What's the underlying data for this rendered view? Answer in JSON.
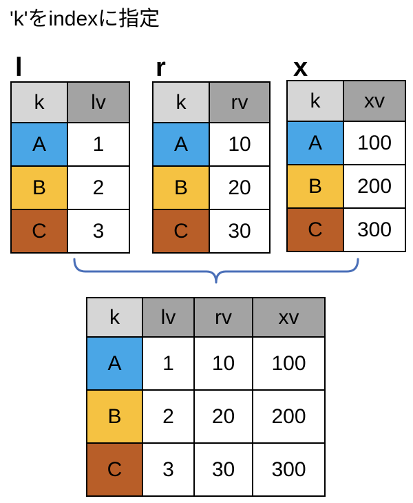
{
  "title": "'k'をindexに指定",
  "tables": {
    "l": {
      "name": "l",
      "header": [
        "k",
        "lv"
      ],
      "rows": [
        [
          "A",
          "1"
        ],
        [
          "B",
          "2"
        ],
        [
          "C",
          "3"
        ]
      ]
    },
    "r": {
      "name": "r",
      "header": [
        "k",
        "rv"
      ],
      "rows": [
        [
          "A",
          "10"
        ],
        [
          "B",
          "20"
        ],
        [
          "C",
          "30"
        ]
      ]
    },
    "x": {
      "name": "x",
      "header": [
        "k",
        "xv"
      ],
      "rows": [
        [
          "A",
          "100"
        ],
        [
          "B",
          "200"
        ],
        [
          "C",
          "300"
        ]
      ]
    },
    "result": {
      "header": [
        "k",
        "lv",
        "rv",
        "xv"
      ],
      "rows": [
        [
          "A",
          "1",
          "10",
          "100"
        ],
        [
          "B",
          "2",
          "20",
          "200"
        ],
        [
          "C",
          "3",
          "30",
          "300"
        ]
      ]
    }
  },
  "colors": {
    "header_key": "#d6d6d6",
    "header_value": "#a3a3a3",
    "key_A": "#4aa6e6",
    "key_B": "#f5c242",
    "key_C": "#b85e28",
    "brace": "#4a6fb8"
  }
}
